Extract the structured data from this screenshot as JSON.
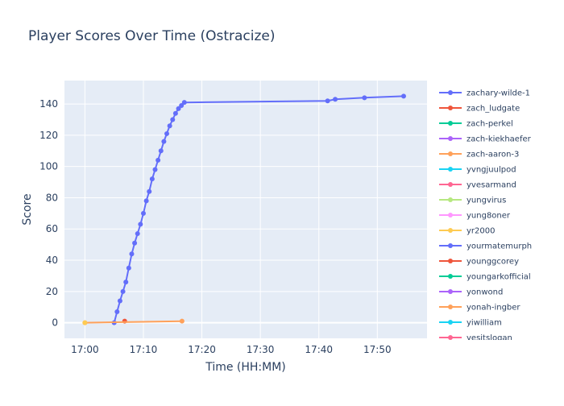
{
  "chart_data": {
    "type": "line",
    "title": "Player Scores Over Time (Ostracize)",
    "xlabel": "Time (HH:MM)",
    "ylabel": "Score",
    "x_ticks": [
      "17:00",
      "17:10",
      "17:20",
      "17:30",
      "17:40",
      "17:50"
    ],
    "x_tick_minutes": [
      0,
      10,
      20,
      30,
      40,
      50
    ],
    "y_ticks": [
      0,
      20,
      40,
      60,
      80,
      100,
      120,
      140
    ],
    "xlim_minutes": [
      -3.5,
      58.5
    ],
    "ylim": [
      -10,
      155
    ],
    "grid": true,
    "legend_position": "right",
    "series": [
      {
        "name": "zachary-wilde-1",
        "color": "#636efa",
        "x_minutes": [
          5.0,
          5.5,
          6.0,
          6.5,
          7.0,
          7.5,
          8.0,
          8.5,
          9.0,
          9.5,
          10.0,
          10.5,
          11.0,
          11.5,
          12.0,
          12.5,
          13.0,
          13.5,
          14.0,
          14.5,
          15.0,
          15.5,
          16.0,
          16.5,
          17.0,
          41.5,
          42.8,
          47.8,
          54.5
        ],
        "values": [
          0,
          7,
          14,
          20,
          26,
          35,
          44,
          51,
          57,
          63,
          70,
          78,
          84,
          92,
          98,
          104,
          110,
          116,
          121,
          126,
          130,
          134,
          137,
          139,
          141,
          142,
          143,
          144,
          145
        ]
      },
      {
        "name": "zach_ludgate",
        "color": "#ef553b",
        "x_minutes": [
          6.8
        ],
        "values": [
          1
        ]
      },
      {
        "name": "zach-aaron-3",
        "color": "#ffa15a",
        "x_minutes": [
          0.0,
          16.6
        ],
        "values": [
          0,
          1
        ]
      },
      {
        "name": "yr2000",
        "color": "#fecb52",
        "x_minutes": [
          0.0
        ],
        "values": [
          0
        ]
      }
    ],
    "legend": [
      {
        "name": "zachary-wilde-1",
        "color": "#636efa"
      },
      {
        "name": "zach_ludgate",
        "color": "#ef553b"
      },
      {
        "name": "zach-perkel",
        "color": "#00cc96"
      },
      {
        "name": "zach-kiekhaefer",
        "color": "#ab63fa"
      },
      {
        "name": "zach-aaron-3",
        "color": "#ffa15a"
      },
      {
        "name": "yvngjuulpod",
        "color": "#19d3f3"
      },
      {
        "name": "yvesarmand",
        "color": "#ff6692"
      },
      {
        "name": "yungvirus",
        "color": "#b6e880"
      },
      {
        "name": "yung8oner",
        "color": "#ff97ff"
      },
      {
        "name": "yr2000",
        "color": "#fecb52"
      },
      {
        "name": "yourmatemurph",
        "color": "#636efa"
      },
      {
        "name": "younggcorey",
        "color": "#ef553b"
      },
      {
        "name": "youngarkofficial",
        "color": "#00cc96"
      },
      {
        "name": "yonwond",
        "color": "#ab63fa"
      },
      {
        "name": "yonah-ingber",
        "color": "#ffa15a"
      },
      {
        "name": "yiwilliam",
        "color": "#19d3f3"
      },
      {
        "name": "yesitslogan",
        "color": "#ff6692"
      }
    ]
  }
}
